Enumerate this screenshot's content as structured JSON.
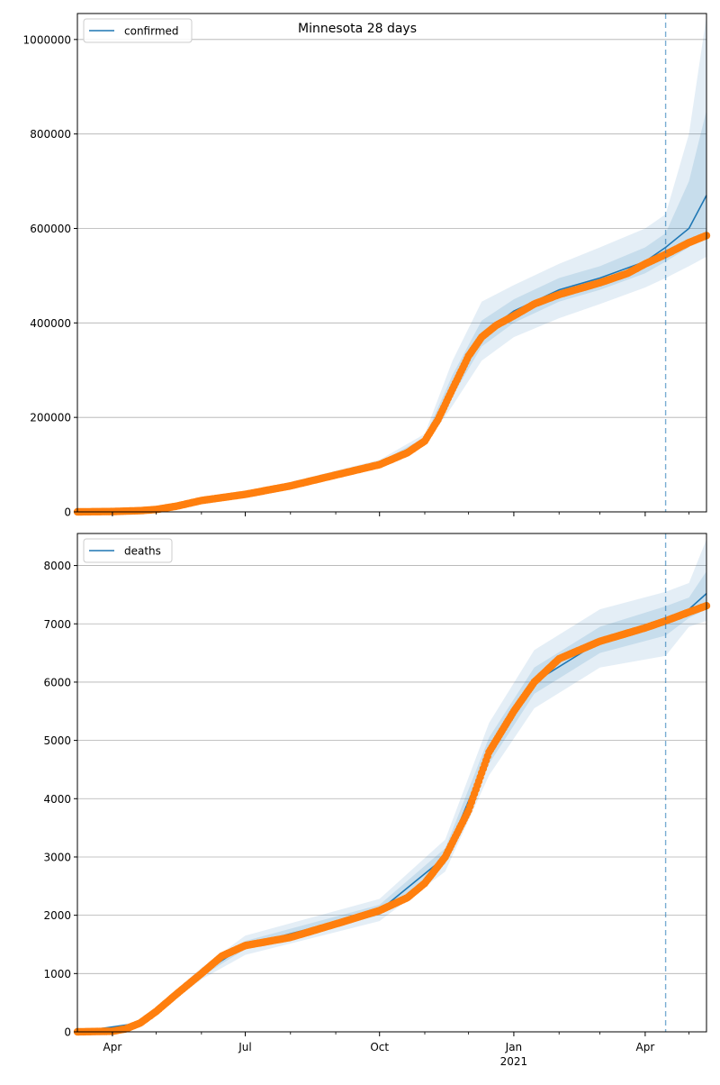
{
  "title": "Minnesota 28 days",
  "colors": {
    "model_line": "#1f77b4",
    "observed_points": "#ff7f0e",
    "band": "#1f77b4",
    "grid": "#b0b0b0",
    "divider": "#1f77b4"
  },
  "x_axis": {
    "range": [
      "2020-03-08",
      "2021-05-13"
    ],
    "ticks": [
      {
        "date": "2020-04-01",
        "label": "Apr",
        "sublabel": ""
      },
      {
        "date": "2020-07-01",
        "label": "Jul",
        "sublabel": ""
      },
      {
        "date": "2020-10-01",
        "label": "Oct",
        "sublabel": ""
      },
      {
        "date": "2021-01-01",
        "label": "Jan",
        "sublabel": "2021"
      },
      {
        "date": "2021-04-01",
        "label": "Apr",
        "sublabel": ""
      }
    ],
    "minor_ticks": [
      "2020-05-01",
      "2020-06-01",
      "2020-08-01",
      "2020-09-01",
      "2020-11-01",
      "2020-12-01",
      "2021-02-01",
      "2021-03-01",
      "2021-05-01"
    ],
    "forecast_start": "2021-04-15"
  },
  "chart_data": [
    {
      "type": "line",
      "legend": "confirmed",
      "legend_position": "top-left",
      "grid": "horizontal",
      "ylim": [
        0,
        1055000
      ],
      "yticks": [
        0,
        200000,
        400000,
        600000,
        800000,
        1000000
      ],
      "ytick_labels": [
        "0",
        "200000",
        "400000",
        "600000",
        "800000",
        "1000000"
      ],
      "observed": [
        [
          "2020-03-08",
          0
        ],
        [
          "2020-04-01",
          700
        ],
        [
          "2020-04-20",
          2500
        ],
        [
          "2020-05-01",
          5000
        ],
        [
          "2020-05-15",
          12000
        ],
        [
          "2020-06-01",
          24000
        ],
        [
          "2020-07-01",
          37000
        ],
        [
          "2020-08-01",
          55000
        ],
        [
          "2020-09-01",
          78000
        ],
        [
          "2020-10-01",
          100000
        ],
        [
          "2020-10-20",
          125000
        ],
        [
          "2020-11-01",
          150000
        ],
        [
          "2020-11-10",
          195000
        ],
        [
          "2020-11-20",
          260000
        ],
        [
          "2020-12-01",
          330000
        ],
        [
          "2020-12-10",
          370000
        ],
        [
          "2020-12-20",
          395000
        ],
        [
          "2021-01-01",
          415000
        ],
        [
          "2021-01-15",
          440000
        ],
        [
          "2021-02-01",
          460000
        ],
        [
          "2021-03-01",
          485000
        ],
        [
          "2021-03-20",
          505000
        ],
        [
          "2021-04-01",
          525000
        ],
        [
          "2021-04-15",
          545000
        ],
        [
          "2021-05-01",
          570000
        ],
        [
          "2021-05-13",
          585000
        ]
      ],
      "model": [
        [
          "2020-03-08",
          0
        ],
        [
          "2020-05-01",
          5000
        ],
        [
          "2020-07-01",
          37000
        ],
        [
          "2020-10-01",
          100000
        ],
        [
          "2020-11-01",
          152000
        ],
        [
          "2020-11-20",
          265000
        ],
        [
          "2020-12-10",
          375000
        ],
        [
          "2021-01-01",
          425000
        ],
        [
          "2021-02-01",
          470000
        ],
        [
          "2021-03-01",
          495000
        ],
        [
          "2021-04-01",
          530000
        ],
        [
          "2021-04-15",
          560000
        ],
        [
          "2021-05-01",
          600000
        ],
        [
          "2021-05-13",
          670000
        ]
      ],
      "band_outer": [
        [
          "2020-03-08",
          0,
          0
        ],
        [
          "2020-05-01",
          4000,
          6000
        ],
        [
          "2020-07-01",
          34000,
          40000
        ],
        [
          "2020-10-01",
          92000,
          110000
        ],
        [
          "2020-11-01",
          140000,
          165000
        ],
        [
          "2020-11-20",
          225000,
          320000
        ],
        [
          "2020-12-10",
          320000,
          445000
        ],
        [
          "2021-01-01",
          370000,
          480000
        ],
        [
          "2021-02-01",
          410000,
          525000
        ],
        [
          "2021-03-01",
          440000,
          560000
        ],
        [
          "2021-04-01",
          475000,
          600000
        ],
        [
          "2021-04-15",
          495000,
          630000
        ],
        [
          "2021-05-01",
          520000,
          800000
        ],
        [
          "2021-05-13",
          540000,
          1050000
        ]
      ],
      "band_inner": [
        [
          "2020-03-08",
          0,
          0
        ],
        [
          "2020-05-01",
          4500,
          5500
        ],
        [
          "2020-07-01",
          35500,
          38500
        ],
        [
          "2020-10-01",
          96000,
          105000
        ],
        [
          "2020-11-01",
          146000,
          158000
        ],
        [
          "2020-11-20",
          245000,
          290000
        ],
        [
          "2020-12-10",
          350000,
          405000
        ],
        [
          "2021-01-01",
          400000,
          450000
        ],
        [
          "2021-02-01",
          445000,
          495000
        ],
        [
          "2021-03-01",
          470000,
          520000
        ],
        [
          "2021-04-01",
          505000,
          560000
        ],
        [
          "2021-04-15",
          530000,
          590000
        ],
        [
          "2021-05-01",
          560000,
          700000
        ],
        [
          "2021-05-13",
          590000,
          850000
        ]
      ]
    },
    {
      "type": "line",
      "legend": "deaths",
      "legend_position": "top-left",
      "grid": "horizontal",
      "ylim": [
        0,
        8550
      ],
      "yticks": [
        0,
        1000,
        2000,
        3000,
        4000,
        5000,
        6000,
        7000,
        8000
      ],
      "ytick_labels": [
        "0",
        "1000",
        "2000",
        "3000",
        "4000",
        "5000",
        "6000",
        "7000",
        "8000"
      ],
      "observed": [
        [
          "2020-03-08",
          0
        ],
        [
          "2020-04-01",
          10
        ],
        [
          "2020-04-10",
          50
        ],
        [
          "2020-04-20",
          150
        ],
        [
          "2020-05-01",
          350
        ],
        [
          "2020-05-15",
          650
        ],
        [
          "2020-06-01",
          1000
        ],
        [
          "2020-06-15",
          1300
        ],
        [
          "2020-07-01",
          1480
        ],
        [
          "2020-08-01",
          1620
        ],
        [
          "2020-09-01",
          1850
        ],
        [
          "2020-10-01",
          2080
        ],
        [
          "2020-10-20",
          2300
        ],
        [
          "2020-11-01",
          2550
        ],
        [
          "2020-11-15",
          3000
        ],
        [
          "2020-12-01",
          3800
        ],
        [
          "2020-12-15",
          4800
        ],
        [
          "2021-01-01",
          5500
        ],
        [
          "2021-01-15",
          6000
        ],
        [
          "2021-02-01",
          6400
        ],
        [
          "2021-03-01",
          6700
        ],
        [
          "2021-04-01",
          6930
        ],
        [
          "2021-04-15",
          7050
        ],
        [
          "2021-05-01",
          7200
        ],
        [
          "2021-05-13",
          7310
        ]
      ],
      "model": [
        [
          "2020-03-08",
          0
        ],
        [
          "2020-04-20",
          150
        ],
        [
          "2020-06-01",
          1000
        ],
        [
          "2020-07-01",
          1480
        ],
        [
          "2020-10-01",
          2080
        ],
        [
          "2020-11-15",
          3000
        ],
        [
          "2020-12-15",
          4800
        ],
        [
          "2021-01-15",
          6000
        ],
        [
          "2021-03-01",
          6700
        ],
        [
          "2021-04-15",
          7050
        ],
        [
          "2021-05-01",
          7250
        ],
        [
          "2021-05-13",
          7520
        ]
      ],
      "band_outer": [
        [
          "2020-03-08",
          0,
          0
        ],
        [
          "2020-04-20",
          120,
          180
        ],
        [
          "2020-06-01",
          900,
          1100
        ],
        [
          "2020-07-01",
          1320,
          1650
        ],
        [
          "2020-10-01",
          1900,
          2280
        ],
        [
          "2020-11-15",
          2750,
          3300
        ],
        [
          "2020-12-15",
          4400,
          5300
        ],
        [
          "2021-01-15",
          5550,
          6550
        ],
        [
          "2021-03-01",
          6250,
          7250
        ],
        [
          "2021-04-15",
          6450,
          7550
        ],
        [
          "2021-05-01",
          6950,
          7700
        ],
        [
          "2021-05-13",
          7050,
          8450
        ]
      ],
      "band_inner": [
        [
          "2020-03-08",
          0,
          0
        ],
        [
          "2020-04-20",
          135,
          165
        ],
        [
          "2020-06-01",
          950,
          1050
        ],
        [
          "2020-07-01",
          1420,
          1560
        ],
        [
          "2020-10-01",
          2000,
          2180
        ],
        [
          "2020-11-15",
          2880,
          3150
        ],
        [
          "2020-12-15",
          4600,
          5050
        ],
        [
          "2021-01-15",
          5800,
          6250
        ],
        [
          "2021-03-01",
          6500,
          6950
        ],
        [
          "2021-04-15",
          6800,
          7300
        ],
        [
          "2021-05-01",
          7100,
          7450
        ],
        [
          "2021-05-13",
          7250,
          7900
        ]
      ]
    }
  ]
}
